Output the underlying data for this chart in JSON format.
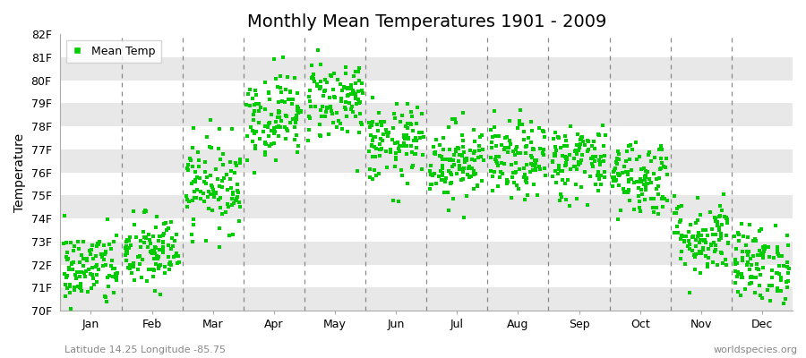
{
  "title": "Monthly Mean Temperatures 1901 - 2009",
  "ylabel": "Temperature",
  "subtitle_left": "Latitude 14.25 Longitude -85.75",
  "subtitle_right": "worldspecies.org",
  "legend_label": "Mean Temp",
  "dot_color": "#00CC00",
  "stripe_light": "#FFFFFF",
  "stripe_dark": "#E8E8E8",
  "ylim": [
    70,
    82
  ],
  "yticks": [
    70,
    71,
    72,
    73,
    74,
    75,
    76,
    77,
    78,
    79,
    80,
    81,
    82
  ],
  "ytick_labels": [
    "70F",
    "71F",
    "72F",
    "73F",
    "74F",
    "75F",
    "76F",
    "77F",
    "78F",
    "79F",
    "80F",
    "81F",
    "82F"
  ],
  "months": [
    "Jan",
    "Feb",
    "Mar",
    "Apr",
    "May",
    "Jun",
    "Jul",
    "Aug",
    "Sep",
    "Oct",
    "Nov",
    "Dec"
  ],
  "month_means": [
    71.8,
    72.5,
    75.5,
    78.5,
    79.2,
    77.2,
    76.5,
    76.5,
    76.5,
    75.8,
    73.2,
    72.0
  ],
  "month_stds": [
    0.85,
    0.85,
    1.0,
    0.95,
    0.9,
    0.85,
    0.85,
    0.85,
    0.85,
    0.85,
    0.85,
    0.85
  ],
  "n_years": 109,
  "seed": 42,
  "marker_size": 7,
  "title_fontsize": 14,
  "label_fontsize": 9,
  "ylabel_fontsize": 10
}
